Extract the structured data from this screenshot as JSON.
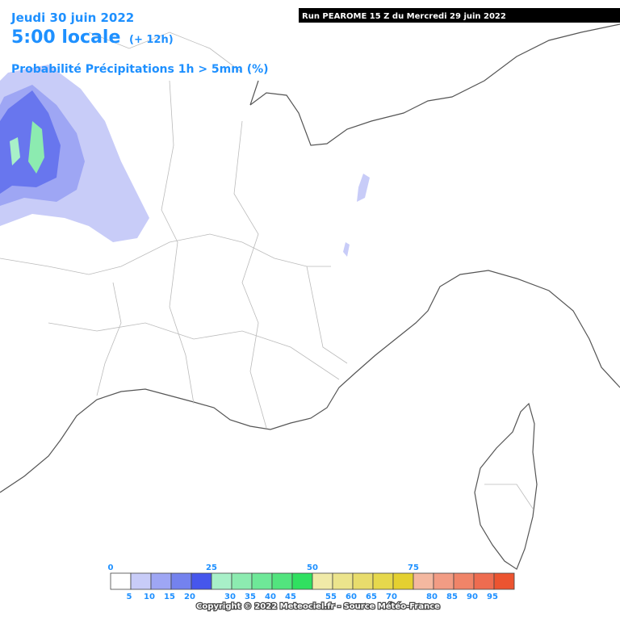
{
  "header": {
    "date": "Jeudi 30 juin 2022",
    "time": "5:00 locale",
    "offset": "(+ 12h)",
    "product": "Probabilité Précipitations 1h > 5mm (%)"
  },
  "run": "Run PEAROME 15 Z du Mercredi 29 juin 2022",
  "legend": {
    "top_labels": [
      0,
      25,
      50,
      75
    ],
    "bottom_labels": [
      5,
      10,
      15,
      20,
      30,
      35,
      40,
      45,
      55,
      60,
      65,
      70,
      80,
      85,
      90,
      95
    ],
    "colors": [
      "#ffffff",
      "#c8ccf8",
      "#9ea6f4",
      "#7482ee",
      "#4656ec",
      "#a8f0c8",
      "#8cebb0",
      "#6ee898",
      "#52e47e",
      "#30e060",
      "#f0eaa8",
      "#ece48c",
      "#e8dc6c",
      "#e6d84c",
      "#e4d030",
      "#f4b8a0",
      "#f29c84",
      "#f08468",
      "#ee6c50",
      "#ec5430"
    ]
  },
  "copyright": "Copyright © 2022 Meteociel.fr - Source Météo-France"
}
